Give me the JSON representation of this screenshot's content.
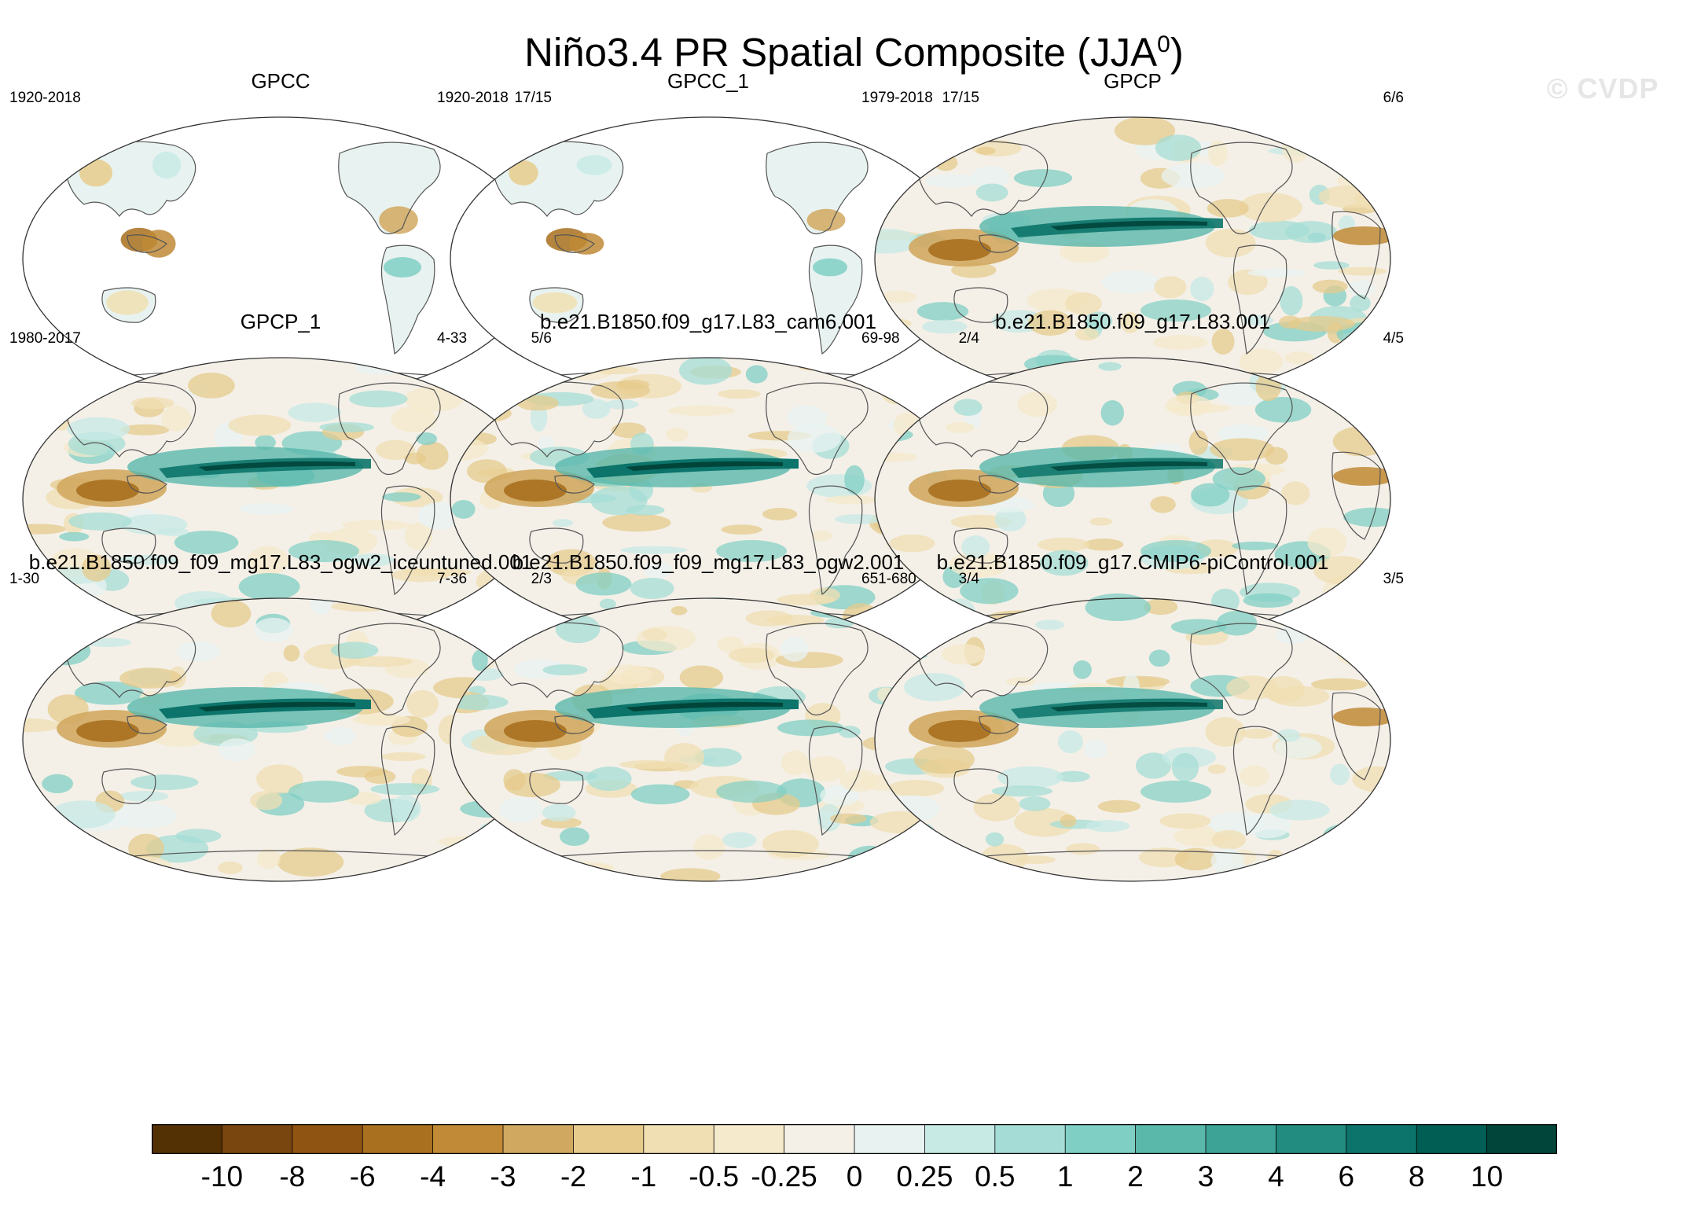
{
  "title": "Niño3.4 PR Spatial Composite (JJA",
  "title_sup": "0",
  "title_close": ")",
  "watermark": "© CVDP",
  "colors": [
    "#543005",
    "#7a4610",
    "#8f5411",
    "#a8701f",
    "#c08a36",
    "#d1a860",
    "#e6cb8c",
    "#f0dfb3",
    "#f5eacb",
    "#f4f0e8",
    "#e8f3f1",
    "#c8eae5",
    "#a5ddd6",
    "#80cfc4",
    "#5ab8ab",
    "#3ca396",
    "#238c80",
    "#0c746a",
    "#005e54",
    "#00443a"
  ],
  "chart_data": {
    "type": "heatmap",
    "title": "Niño3.4 PR Spatial Composite (JJA0)",
    "colorbar_levels": [
      "-10",
      "-8",
      "-6",
      "-4",
      "-3",
      "-2",
      "-1",
      "-0.5",
      "-0.25",
      "0",
      "0.25",
      "0.5",
      "1",
      "2",
      "3",
      "4",
      "6",
      "8",
      "10"
    ],
    "panels": [
      {
        "name": "GPCC",
        "period": "1920-2018",
        "count": "17/15",
        "land_only": true,
        "equatorial_band": 0
      },
      {
        "name": "GPCC_1",
        "period": "1920-2018",
        "count": "17/15",
        "land_only": true,
        "equatorial_band": 0
      },
      {
        "name": "GPCP",
        "period": "1979-2018",
        "count": "6/6",
        "land_only": false,
        "equatorial_band": 0.9
      },
      {
        "name": "GPCP_1",
        "period": "1980-2017",
        "count": "5/6",
        "land_only": false,
        "equatorial_band": 0.9
      },
      {
        "name": "b.e21.B1850.f09_g17.L83_cam6.001",
        "period": "4-33",
        "count": "2/4",
        "land_only": false,
        "equatorial_band": 1.0
      },
      {
        "name": "b.e21.B1850.f09_g17.L83.001",
        "period": "69-98",
        "count": "4/5",
        "land_only": false,
        "equatorial_band": 0.85
      },
      {
        "name": "b.e21.B1850.f09_f09_mg17.L83_ogw2_iceuntuned.001",
        "period": "1-30",
        "count": "2/3",
        "land_only": false,
        "equatorial_band": 1.0
      },
      {
        "name": "b.e21.B1850.f09_f09_mg17.L83_ogw2.001",
        "period": "7-36",
        "count": "3/4",
        "land_only": false,
        "equatorial_band": 1.0
      },
      {
        "name": "b.e21.B1850.f09_g17.CMIP6-piControl.001",
        "period": "651-680",
        "count": "3/5",
        "land_only": false,
        "equatorial_band": 0.85
      }
    ]
  }
}
